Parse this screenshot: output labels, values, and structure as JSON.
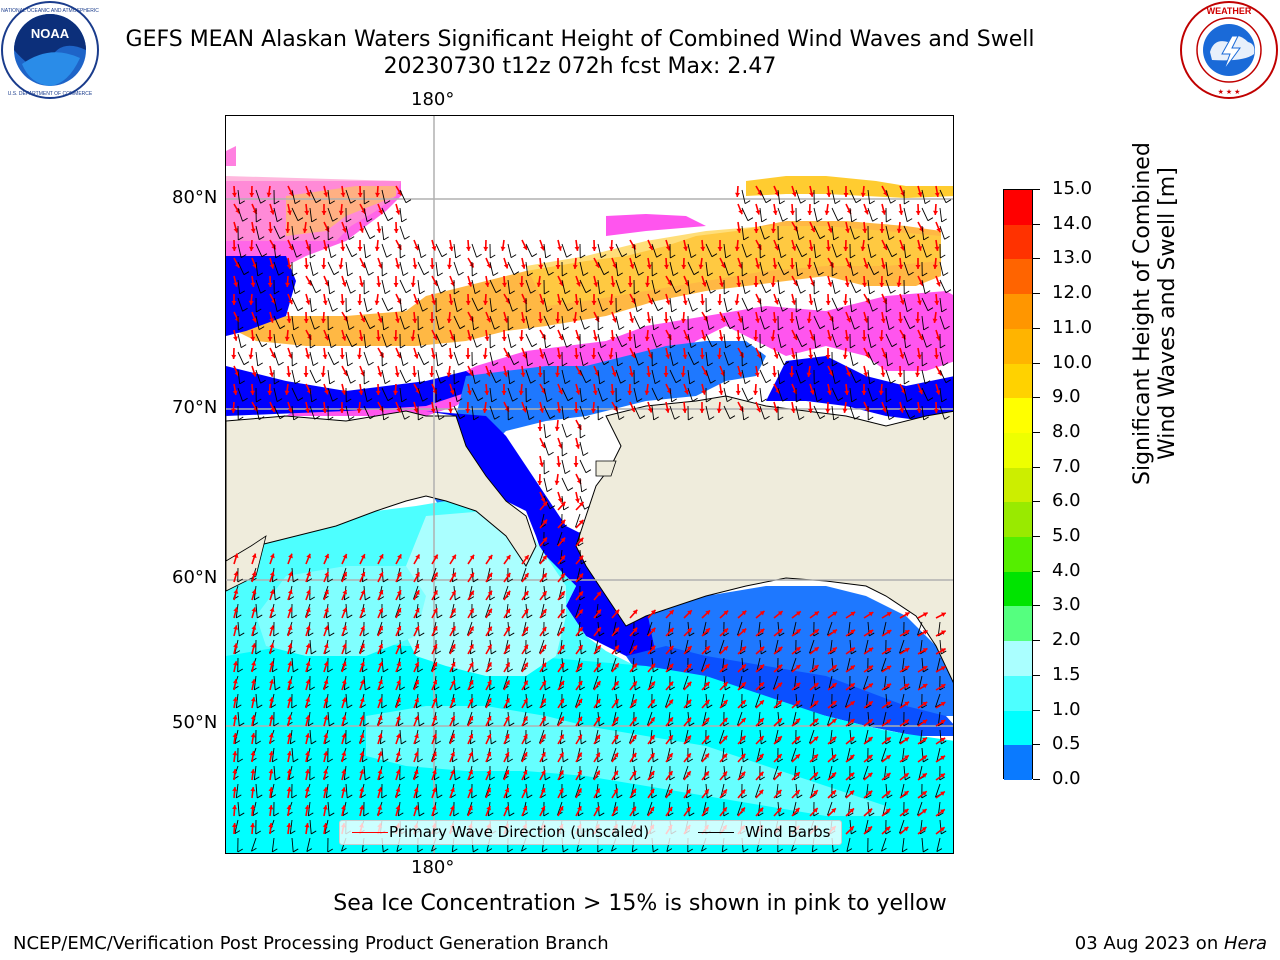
{
  "header": {
    "title": "GEFS MEAN Alaskan Waters Significant Height of Combined Wind Waves and Swell",
    "subtitle": "20230730 t12z 072h fcst   Max: 2.47"
  },
  "logos": {
    "left": {
      "name": "noaa-logo",
      "text": "NOAA",
      "ring_text": "NATIONAL OCEANIC AND ATMOSPHERIC ADMINISTRATION · U.S. DEPARTMENT OF COMMERCE"
    },
    "right": {
      "name": "nws-logo",
      "ring_text": "NATIONAL WEATHER SERVICE"
    }
  },
  "map": {
    "lon_label_top": "180°",
    "lon_label_bottom": "180°",
    "lat_labels": [
      "80°N",
      "70°N",
      "60°N",
      "50°N"
    ],
    "colors": {
      "land": "#efecdc",
      "coast": "#000000",
      "grid": "#b0b0b0",
      "arrow": "#ff0000",
      "barb": "#000000"
    }
  },
  "legend": {
    "entries": [
      {
        "label": "Primary Wave Direction (unscaled)",
        "color": "#ff0000"
      },
      {
        "label": "Wind Barbs",
        "color": "#000000"
      }
    ]
  },
  "colorbar": {
    "label_line1": "Significant Height of Combined",
    "label_line2": "Wind Waves and Swell [m]",
    "ticks": [
      "15.0",
      "14.0",
      "13.0",
      "12.0",
      "11.0",
      "10.0",
      "9.0",
      "8.0",
      "7.0",
      "6.0",
      "5.0",
      "4.0",
      "3.0",
      "2.0",
      "1.5",
      "1.0",
      "0.5",
      "0.0"
    ],
    "colors": [
      "#0000ff",
      "#0a7aff",
      "#00ffff",
      "#4dffff",
      "#aaffff",
      "#55ff7f",
      "#00e400",
      "#55ee00",
      "#99ea00",
      "#ccee00",
      "#eeff00",
      "#ffff00",
      "#ffd200",
      "#ffb400",
      "#ff9600",
      "#ff6400",
      "#ff3200",
      "#ff0000"
    ]
  },
  "notes": {
    "ice": "Sea Ice Concentration > 15% is shown in pink to yellow"
  },
  "footer": {
    "left": "NCEP/EMC/Verification Post Processing Product Generation Branch",
    "right_prefix": "03 Aug 2023 on ",
    "right_host": "Hera"
  }
}
